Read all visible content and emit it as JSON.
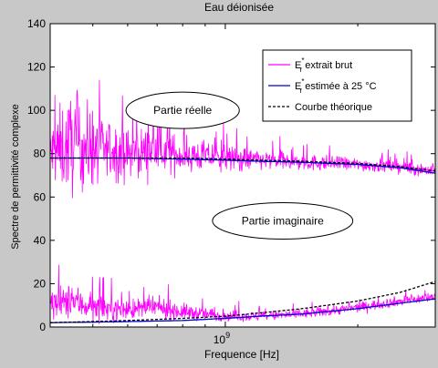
{
  "chart_data": {
    "type": "line",
    "title": "Eau déionisée",
    "xlabel": "Frequence [Hz]",
    "ylabel": "Spectre de permittivité complexe",
    "x_scale": "log",
    "xlim": [
      400000000,
      3000000000
    ],
    "ylim": [
      0,
      140
    ],
    "grid": false,
    "legend_position": "top-right",
    "x_ticks": [
      {
        "value": 1000000000,
        "label_base": "10",
        "label_exp": "9"
      }
    ],
    "y_ticks": [
      {
        "value": 0,
        "label": "0"
      },
      {
        "value": 20,
        "label": "20"
      },
      {
        "value": 40,
        "label": "40"
      },
      {
        "value": 60,
        "label": "60"
      },
      {
        "value": 80,
        "label": "80"
      },
      {
        "value": 100,
        "label": "100"
      },
      {
        "value": 120,
        "label": "120"
      },
      {
        "value": 140,
        "label": "140"
      }
    ],
    "series": [
      {
        "name": "Er* extrait brut",
        "legend_base": "E",
        "legend_sub": "r",
        "legend_sup": "*",
        "legend_rest": " extrait brut",
        "color": "#ff00ff",
        "style": "solid",
        "part": "real",
        "x": [
          400000000,
          450000000,
          500000000,
          600000000,
          700000000,
          800000000,
          900000000,
          1000000000,
          1200000000,
          1500000000,
          2000000000,
          2500000000,
          3000000000
        ],
        "y": [
          80,
          85,
          82,
          80,
          82,
          79,
          79,
          78,
          77,
          76,
          75,
          74,
          72
        ],
        "noise": [
          20,
          30,
          22,
          14,
          14,
          10,
          9,
          8,
          6,
          5,
          4,
          4,
          4
        ]
      },
      {
        "name": "Er* extrait brut",
        "color": "#ff00ff",
        "style": "solid",
        "part": "imaginary",
        "x": [
          400000000,
          450000000,
          500000000,
          600000000,
          700000000,
          800000000,
          900000000,
          1000000000,
          1200000000,
          1500000000,
          2000000000,
          2500000000,
          3000000000
        ],
        "y": [
          10,
          12,
          9,
          8,
          9,
          7,
          6,
          5,
          5,
          6,
          9,
          12,
          14
        ],
        "noise": [
          10,
          10,
          8,
          6,
          6,
          5,
          4,
          3,
          3,
          3,
          3,
          3,
          3
        ]
      },
      {
        "name": "Er* estimée à 25 °C",
        "legend_base": "E",
        "legend_sub": "r",
        "legend_sup": "*",
        "legend_rest": " estimée à 25 °C",
        "color": "#0000cc",
        "style": "solid",
        "part": "real",
        "x": [
          400000000,
          600000000,
          800000000,
          1000000000,
          1200000000,
          1500000000,
          2000000000,
          2500000000,
          3000000000
        ],
        "y": [
          78,
          78,
          77.5,
          77,
          76.5,
          76,
          75,
          73.5,
          71
        ]
      },
      {
        "name": "Er* estimée à 25 °C",
        "color": "#0000cc",
        "style": "solid",
        "part": "imaginary",
        "x": [
          400000000,
          600000000,
          800000000,
          1000000000,
          1200000000,
          1500000000,
          2000000000,
          2500000000,
          3000000000
        ],
        "y": [
          2,
          2.5,
          3,
          4,
          5,
          6,
          8.5,
          11,
          13
        ]
      },
      {
        "name": "Courbe théorique",
        "legend_text": "Courbe théorique",
        "color": "#000000",
        "style": "dashed",
        "part": "real",
        "x": [
          400000000,
          600000000,
          800000000,
          1000000000,
          1200000000,
          1500000000,
          2000000000,
          2500000000,
          3000000000
        ],
        "y": [
          78,
          78,
          78,
          77.5,
          77,
          76.5,
          75.5,
          74,
          72
        ]
      },
      {
        "name": "Courbe théorique",
        "color": "#000000",
        "style": "dashed",
        "part": "imaginary",
        "x": [
          400000000,
          600000000,
          800000000,
          1000000000,
          1200000000,
          1500000000,
          2000000000,
          2500000000,
          3000000000
        ],
        "y": [
          2,
          3,
          4,
          5,
          6.5,
          8.5,
          12,
          16,
          21
        ]
      }
    ],
    "annotations": [
      {
        "text": "Partie réelle",
        "x": 800000000,
        "y": 100
      },
      {
        "text": "Partie imaginaire",
        "x": 1350000000,
        "y": 49
      }
    ]
  }
}
